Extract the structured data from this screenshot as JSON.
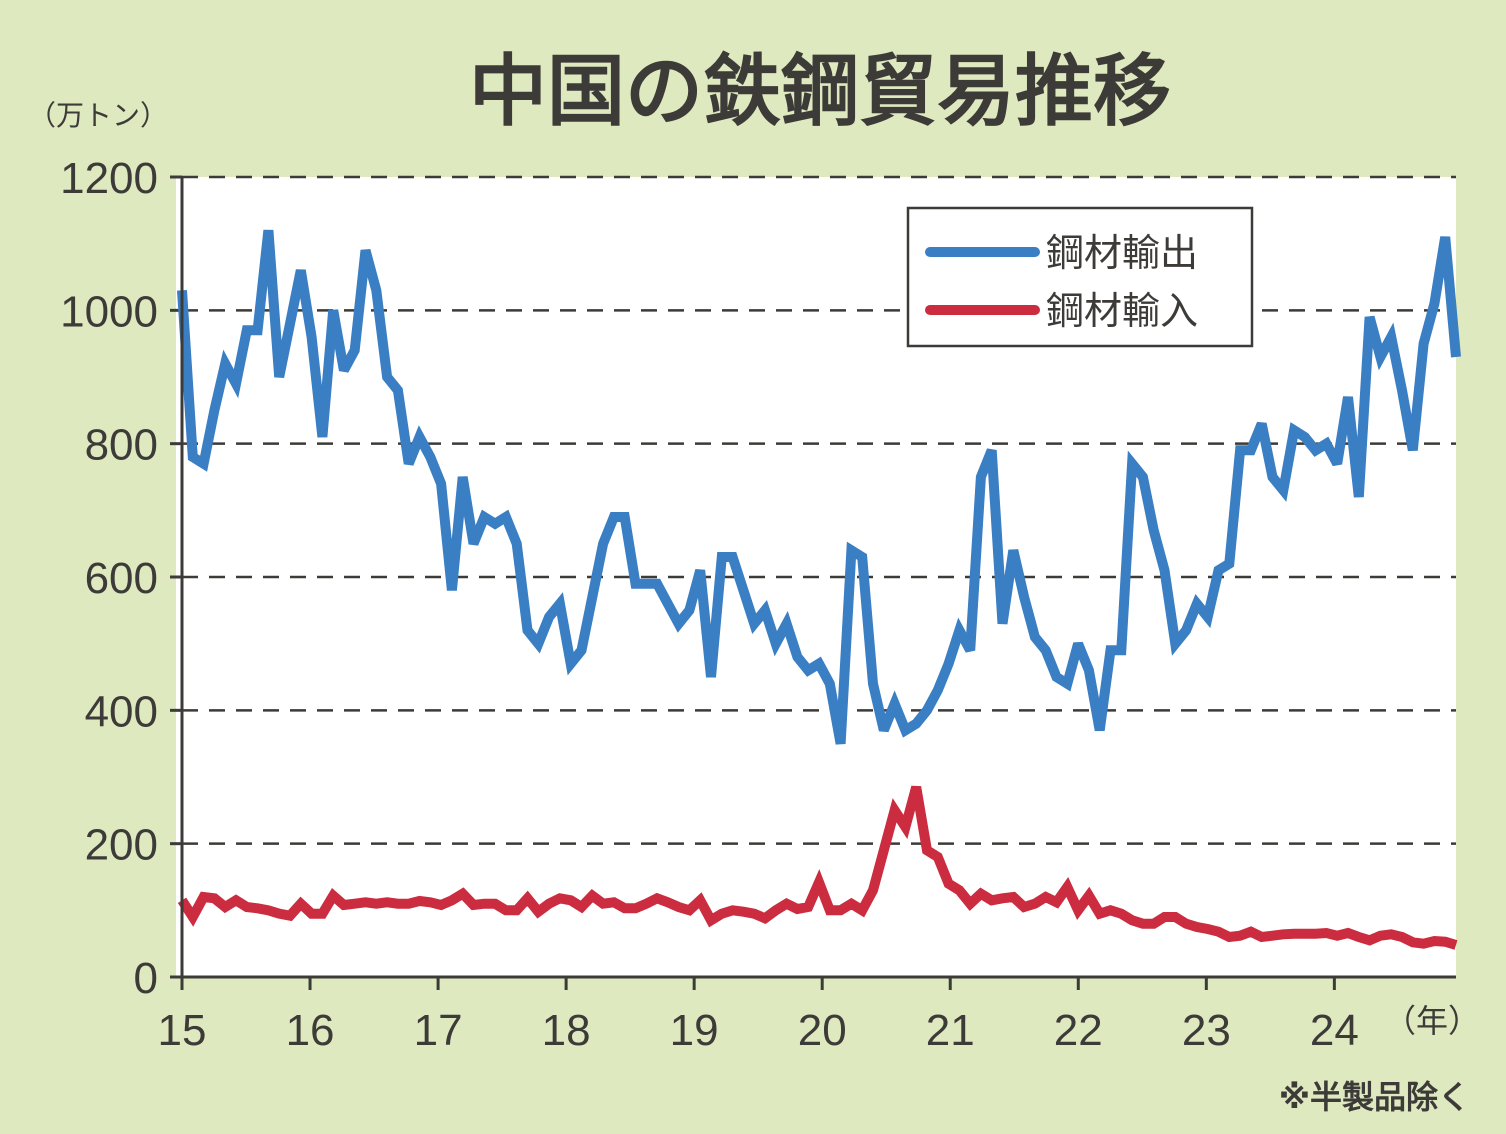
{
  "title": "中国の鉄鋼貿易推移",
  "y_unit": "（万トン）",
  "x_unit": "（年）",
  "note": "※半製品除く",
  "colors": {
    "export": "#3a7ec3",
    "import": "#cc2c3f",
    "plot_bg": "#ffffff",
    "page_bg": "#dfe9c0"
  },
  "chart_data": {
    "type": "line",
    "title": "中国の鉄鋼貿易推移",
    "ylabel": "（万トン）",
    "xlabel": "（年）",
    "ylim": [
      0,
      1200
    ],
    "xlim": [
      2015.0,
      2024.95
    ],
    "yticks": [
      "0",
      "200",
      "400",
      "600",
      "800",
      "1000",
      "1200"
    ],
    "xtick_labels": [
      "15",
      "16",
      "17",
      "18",
      "19",
      "20",
      "21",
      "22",
      "23",
      "24"
    ],
    "grid": "horizontal dashed",
    "legend_position": "top-right",
    "series": [
      {
        "name": "鋼材輸出",
        "values": [
          1030,
          780,
          770,
          850,
          920,
          890,
          970,
          970,
          1120,
          900,
          980,
          1060,
          960,
          810,
          1000,
          910,
          940,
          1090,
          1030,
          900,
          880,
          770,
          810,
          780,
          740,
          580,
          750,
          650,
          690,
          680,
          690,
          650,
          520,
          500,
          540,
          560,
          470,
          490,
          570,
          650,
          690,
          690,
          590,
          590,
          590,
          560,
          530,
          550,
          610,
          450,
          630,
          630,
          580,
          530,
          550,
          500,
          530,
          480,
          460,
          470,
          440,
          350,
          640,
          630,
          440,
          370,
          410,
          370,
          380,
          400,
          430,
          470,
          520,
          490,
          750,
          790,
          530,
          640,
          570,
          510,
          490,
          450,
          440,
          500,
          460,
          370,
          490,
          490,
          770,
          750,
          670,
          610,
          500,
          520,
          560,
          540,
          610,
          620,
          790,
          790,
          830,
          750,
          730,
          820,
          810,
          790,
          800,
          770,
          870,
          720,
          990,
          930,
          960,
          880,
          790,
          950,
          1010,
          1110,
          930
        ]
      },
      {
        "name": "鋼材輸入",
        "values": [
          115,
          90,
          120,
          118,
          105,
          115,
          105,
          103,
          100,
          95,
          92,
          110,
          95,
          95,
          122,
          108,
          110,
          112,
          110,
          112,
          110,
          110,
          114,
          112,
          108,
          115,
          125,
          108,
          110,
          110,
          100,
          100,
          118,
          98,
          110,
          118,
          115,
          105,
          122,
          110,
          112,
          103,
          103,
          110,
          118,
          112,
          105,
          100,
          115,
          85,
          95,
          100,
          98,
          95,
          88,
          100,
          110,
          102,
          105,
          142,
          100,
          100,
          110,
          100,
          130,
          190,
          250,
          225,
          285,
          190,
          180,
          140,
          130,
          110,
          125,
          115,
          118,
          120,
          105,
          110,
          120,
          112,
          135,
          100,
          122,
          95,
          100,
          95,
          85,
          80,
          80,
          90,
          90,
          80,
          75,
          72,
          68,
          60,
          62,
          68,
          60,
          62,
          64,
          65,
          65,
          65,
          66,
          62,
          66,
          60,
          55,
          62,
          64,
          60,
          52,
          50,
          54,
          53,
          48
        ]
      }
    ]
  }
}
